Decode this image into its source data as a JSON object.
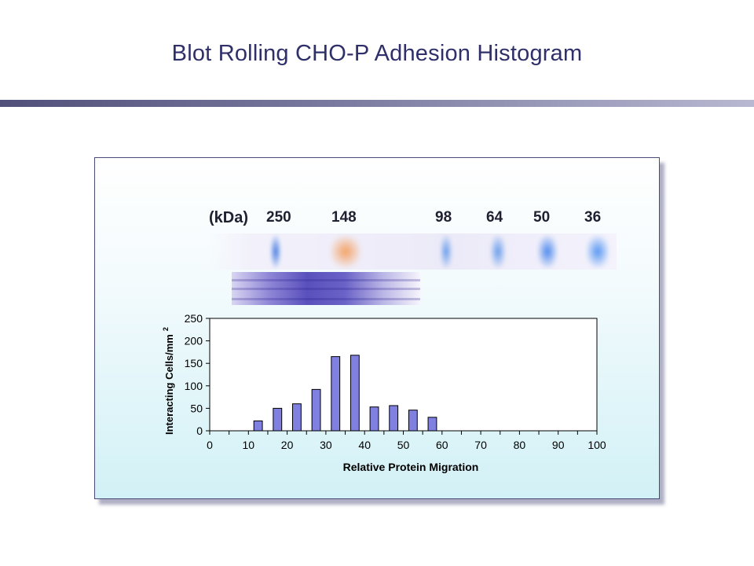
{
  "title": "Blot Rolling CHO-P Adhesion Histogram",
  "blot": {
    "unit_label": "(kDa)",
    "markers": [
      "250",
      "148",
      "98",
      "64",
      "50",
      "36"
    ]
  },
  "chart_data": {
    "type": "bar",
    "title": "",
    "xlabel": "Relative Protein Migration",
    "ylabel": "Interacting Cells/mm",
    "ylabel_superscript": "2",
    "xlim": [
      0,
      100
    ],
    "ylim": [
      0,
      250
    ],
    "xticks": [
      0,
      10,
      20,
      30,
      40,
      50,
      60,
      70,
      80,
      90,
      100
    ],
    "yticks": [
      0,
      50,
      100,
      150,
      200,
      250
    ],
    "bar_centers": [
      2.5,
      7.5,
      12.5,
      17.5,
      22.5,
      27.5,
      32.5,
      37.5,
      42.5,
      47.5,
      52.5,
      57.5,
      62.5,
      67.5,
      72.5,
      77.5,
      82.5,
      87.5,
      92.5,
      97.5
    ],
    "values": [
      0,
      0,
      22,
      50,
      60,
      92,
      165,
      168,
      53,
      56,
      46,
      30,
      0,
      0,
      0,
      0,
      0,
      0,
      0,
      0
    ],
    "bar_color": "#8080e0",
    "grid": false,
    "legend": "none"
  }
}
